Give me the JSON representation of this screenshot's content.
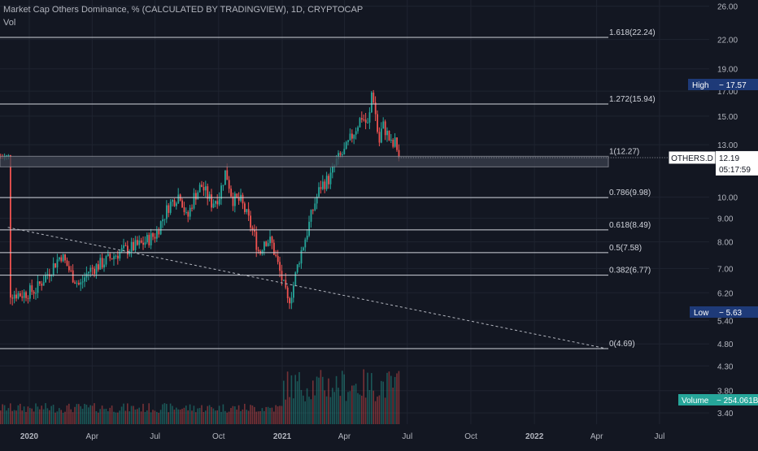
{
  "header": {
    "title": "Market Cap Others Dominance, % (CALCULATED BY TRADINGVIEW), 1D, CRYPTOCAP",
    "volume_label": "Vol"
  },
  "chart_data": {
    "type": "candlestick",
    "title": "Market Cap Others Dominance, % (CALCULATED BY TRADINGVIEW), 1D, CRYPTOCAP",
    "y_scale": "log",
    "y_ticks": [
      "26.00",
      "22.00",
      "19.00",
      "17.00",
      "15.00",
      "13.00",
      "12.19",
      "10.00",
      "9.00",
      "8.00",
      "7.00",
      "6.20",
      "5.40",
      "4.80",
      "4.30",
      "3.80",
      "3.40"
    ],
    "x_ticks": [
      "2020",
      "Apr",
      "Jul",
      "Oct",
      "2021",
      "Apr",
      "Jul",
      "Oct",
      "2022",
      "Apr",
      "Jul"
    ],
    "grid": true,
    "fib_levels": [
      {
        "ratio": "1.618",
        "value": 22.24,
        "label": "1.618(22.24)"
      },
      {
        "ratio": "1.272",
        "value": 15.94,
        "label": "1.272(15.94)"
      },
      {
        "ratio": "1",
        "value": 12.27,
        "label": "1(12.27)"
      },
      {
        "ratio": "0.786",
        "value": 9.98,
        "label": "0.786(9.98)"
      },
      {
        "ratio": "0.618",
        "value": 8.49,
        "label": "0.618(8.49)"
      },
      {
        "ratio": "0.5",
        "value": 7.58,
        "label": "0.5(7.58)"
      },
      {
        "ratio": "0.382",
        "value": 6.77,
        "label": "0.382(6.77)"
      },
      {
        "ratio": "0",
        "value": 4.69,
        "label": "0(4.69)"
      }
    ],
    "price_path": [
      [
        "2019-12-01",
        6.2
      ],
      [
        "2019-12-20",
        6.15
      ],
      [
        "2020-01-10",
        6.3
      ],
      [
        "2020-02-01",
        7.0
      ],
      [
        "2020-02-15",
        7.5
      ],
      [
        "2020-03-01",
        6.8
      ],
      [
        "2020-03-13",
        6.4
      ],
      [
        "2020-03-25",
        6.9
      ],
      [
        "2020-04-15",
        7.2
      ],
      [
        "2020-05-10",
        7.6
      ],
      [
        "2020-06-10",
        7.9
      ],
      [
        "2020-07-01",
        8.3
      ],
      [
        "2020-07-20",
        9.6
      ],
      [
        "2020-08-05",
        10.2
      ],
      [
        "2020-08-15",
        8.9
      ],
      [
        "2020-08-25",
        10.0
      ],
      [
        "2020-09-05",
        10.6
      ],
      [
        "2020-09-20",
        9.7
      ],
      [
        "2020-10-01",
        10.1
      ],
      [
        "2020-10-10",
        11.4
      ],
      [
        "2020-10-20",
        9.9
      ],
      [
        "2020-11-01",
        9.8
      ],
      [
        "2020-11-10",
        9.1
      ],
      [
        "2020-11-20",
        8.3
      ],
      [
        "2020-11-28",
        7.5
      ],
      [
        "2020-12-05",
        8.1
      ],
      [
        "2020-12-15",
        8.0
      ],
      [
        "2020-12-25",
        7.1
      ],
      [
        "2021-01-01",
        6.5
      ],
      [
        "2021-01-08",
        5.9
      ],
      [
        "2021-01-15",
        6.3
      ],
      [
        "2021-01-25",
        7.4
      ],
      [
        "2021-02-05",
        8.4
      ],
      [
        "2021-02-15",
        9.6
      ],
      [
        "2021-02-25",
        10.6
      ],
      [
        "2021-03-10",
        11.0
      ],
      [
        "2021-03-20",
        12.0
      ],
      [
        "2021-04-01",
        12.6
      ],
      [
        "2021-04-15",
        14.0
      ],
      [
        "2021-04-25",
        15.0
      ],
      [
        "2021-05-05",
        14.2
      ],
      [
        "2021-05-10",
        17.3
      ],
      [
        "2021-05-15",
        15.1
      ],
      [
        "2021-05-20",
        13.0
      ],
      [
        "2021-05-25",
        14.4
      ],
      [
        "2021-06-01",
        13.7
      ],
      [
        "2021-06-08",
        12.8
      ],
      [
        "2021-06-13",
        13.2
      ],
      [
        "2021-06-18",
        12.19
      ]
    ],
    "trendline": [
      [
        "2019-12-01",
        8.6
      ],
      [
        "2022-04-15",
        4.69
      ]
    ],
    "volume_last": "254.061B",
    "high": "17.57",
    "low": "5.63",
    "last_price": "12.19",
    "countdown": "05:17:59",
    "symbol": "OTHERS.D",
    "colors": {
      "background": "#131722",
      "up": "#26a69a",
      "down": "#ef5350",
      "grid": "#1f2430",
      "fib_line": "#d1d4dc",
      "trendline": "#b2b5be",
      "badge_blue": "#1e3a78",
      "volume_badge": "#26a69a"
    }
  },
  "labels": {
    "high_text": "High",
    "low_text": "Low",
    "volume_text": "Volume"
  }
}
